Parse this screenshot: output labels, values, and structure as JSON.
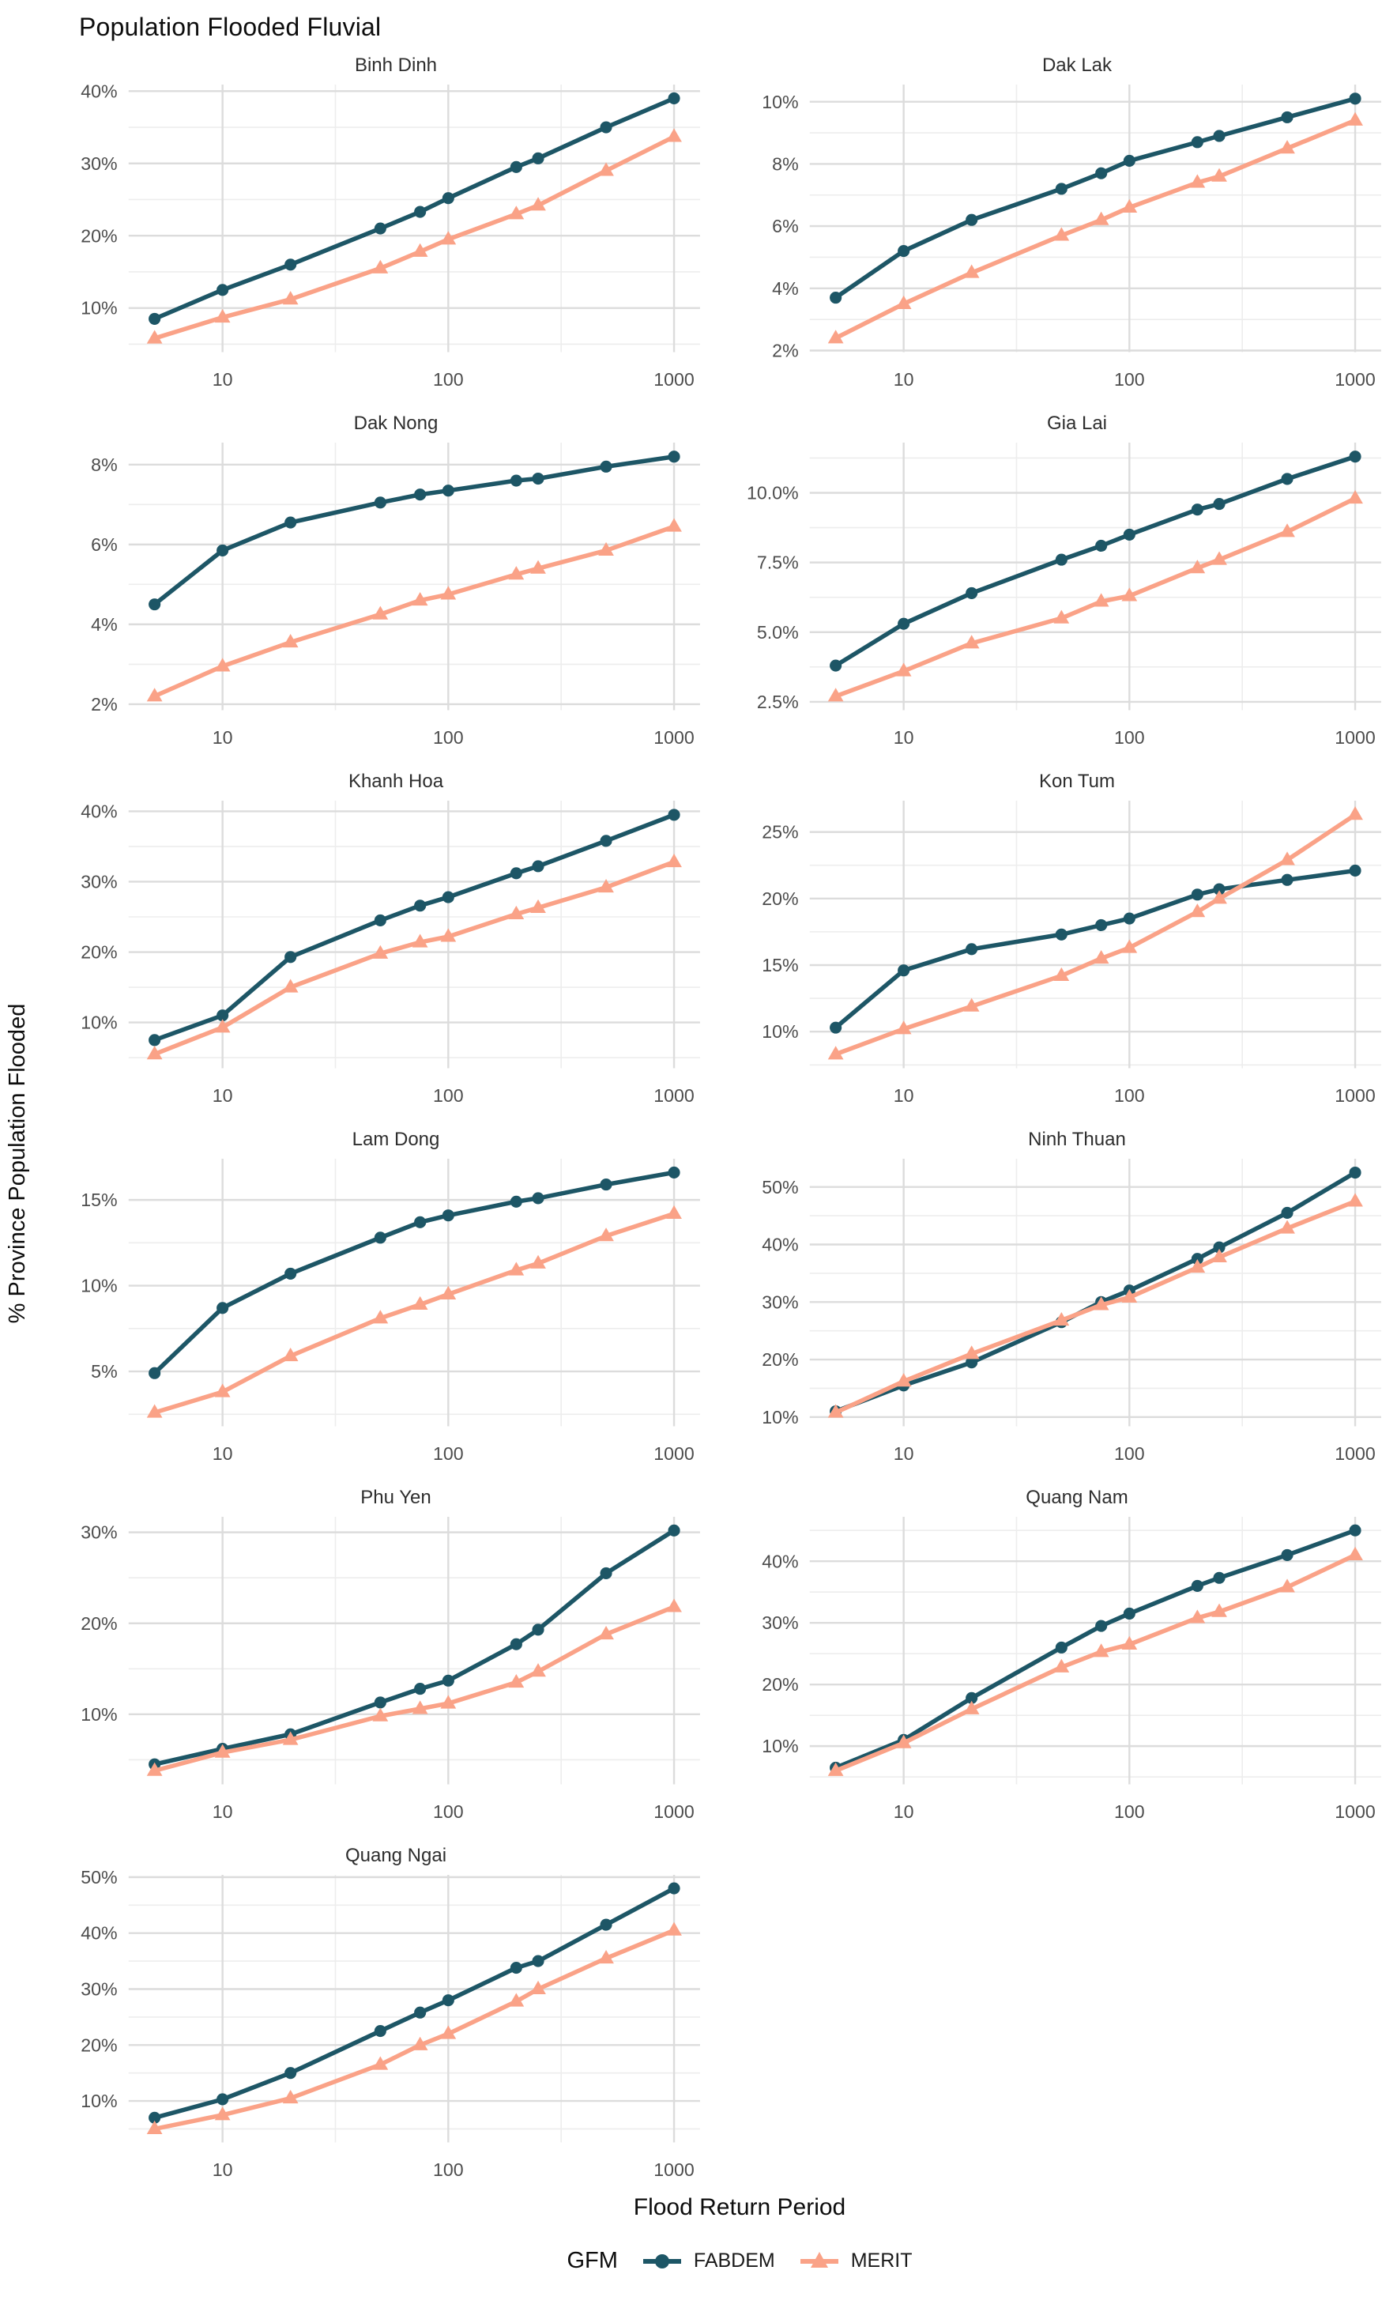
{
  "title": "Population Flooded Fluvial",
  "axes": {
    "x_title": "Flood Return Period",
    "y_title": "% Province Population Flooded"
  },
  "legend": {
    "title": "GFM"
  },
  "colors": {
    "fabdem": "#1d5666",
    "merit": "#faa287",
    "grid_major": "#dcdcdc",
    "grid_minor": "#ededed",
    "tick_text": "#4d4d4d"
  },
  "chart_data": {
    "type": "line",
    "x_scale": "log10",
    "xlabel": "Flood Return Period",
    "ylabel": "% Province Population Flooded",
    "grid": true,
    "legend_position": "bottom",
    "x": [
      5,
      10,
      20,
      50,
      75,
      100,
      200,
      250,
      500,
      1000
    ],
    "xtick_values": [
      10,
      100,
      1000
    ],
    "xtick_labels": [
      "10",
      "100",
      "1000"
    ],
    "x_minor": [
      31.62,
      316.2
    ],
    "series_meta": [
      {
        "name": "FABDEM",
        "color": "#1d5666",
        "marker": "circle"
      },
      {
        "name": "MERIT",
        "color": "#faa287",
        "marker": "triangle"
      }
    ],
    "facets": [
      {
        "title": "Binh Dinh",
        "ylim": [
          3.9,
          40.9
        ],
        "ytick_values": [
          10,
          20,
          30,
          40
        ],
        "ytick_labels": [
          "10%",
          "20%",
          "30%",
          "40%"
        ],
        "series": {
          "FABDEM": [
            8.5,
            12.5,
            16.0,
            21.0,
            23.3,
            25.2,
            29.5,
            30.7,
            35.0,
            39.0
          ],
          "MERIT": [
            5.8,
            8.7,
            11.2,
            15.5,
            17.8,
            19.5,
            23.0,
            24.2,
            29.0,
            33.7
          ]
        }
      },
      {
        "title": "Dak Lak",
        "ylim": [
          1.95,
          10.55
        ],
        "ytick_values": [
          2,
          4,
          6,
          8,
          10
        ],
        "ytick_labels": [
          "2%",
          "4%",
          "6%",
          "8%",
          "10%"
        ],
        "series": {
          "FABDEM": [
            3.7,
            5.2,
            6.2,
            7.2,
            7.7,
            8.1,
            8.7,
            8.9,
            9.5,
            10.1
          ],
          "MERIT": [
            2.4,
            3.5,
            4.5,
            5.7,
            6.2,
            6.6,
            7.4,
            7.6,
            8.5,
            9.4
          ]
        }
      },
      {
        "title": "Dak Nong",
        "ylim": [
          1.85,
          8.55
        ],
        "ytick_values": [
          2,
          4,
          6,
          8
        ],
        "ytick_labels": [
          "2%",
          "4%",
          "6%",
          "8%"
        ],
        "series": {
          "FABDEM": [
            4.5,
            5.85,
            6.55,
            7.05,
            7.25,
            7.35,
            7.6,
            7.65,
            7.95,
            8.2
          ],
          "MERIT": [
            2.2,
            2.95,
            3.55,
            4.25,
            4.6,
            4.75,
            5.25,
            5.4,
            5.85,
            6.45
          ]
        }
      },
      {
        "title": "Gia Lai",
        "ylim": [
          2.2,
          11.8
        ],
        "ytick_values": [
          2.5,
          5.0,
          7.5,
          10.0
        ],
        "ytick_labels": [
          "2.5%",
          "5.0%",
          "7.5%",
          "10.0%"
        ],
        "series": {
          "FABDEM": [
            3.8,
            5.3,
            6.4,
            7.6,
            8.1,
            8.5,
            9.4,
            9.6,
            10.5,
            11.3
          ],
          "MERIT": [
            2.7,
            3.6,
            4.6,
            5.5,
            6.1,
            6.3,
            7.3,
            7.6,
            8.6,
            9.8
          ]
        }
      },
      {
        "title": "Khanh Hoa",
        "ylim": [
          3.5,
          41.5
        ],
        "ytick_values": [
          10,
          20,
          30,
          40
        ],
        "ytick_labels": [
          "10%",
          "20%",
          "30%",
          "40%"
        ],
        "series": {
          "FABDEM": [
            7.5,
            11.0,
            19.3,
            24.5,
            26.6,
            27.8,
            31.2,
            32.2,
            35.8,
            39.5
          ],
          "MERIT": [
            5.5,
            9.3,
            15.0,
            19.8,
            21.4,
            22.2,
            25.4,
            26.3,
            29.2,
            32.8
          ]
        }
      },
      {
        "title": "Kon Tum",
        "ylim": [
          7.25,
          27.35
        ],
        "ytick_values": [
          10,
          15,
          20,
          25
        ],
        "ytick_labels": [
          "10%",
          "15%",
          "20%",
          "25%"
        ],
        "series": {
          "FABDEM": [
            10.3,
            14.6,
            16.2,
            17.3,
            18.0,
            18.5,
            20.3,
            20.7,
            21.4,
            22.1
          ],
          "MERIT": [
            8.3,
            10.2,
            11.9,
            14.2,
            15.5,
            16.3,
            19.0,
            20.0,
            22.9,
            26.3
          ]
        }
      },
      {
        "title": "Lam Dong",
        "ylim": [
          1.8,
          17.4
        ],
        "ytick_values": [
          5,
          10,
          15
        ],
        "ytick_labels": [
          "5%",
          "10%",
          "15%"
        ],
        "series": {
          "FABDEM": [
            4.9,
            8.7,
            10.7,
            12.8,
            13.7,
            14.1,
            14.9,
            15.1,
            15.9,
            16.6
          ],
          "MERIT": [
            2.6,
            3.8,
            5.9,
            8.1,
            8.9,
            9.5,
            10.9,
            11.3,
            12.9,
            14.2
          ]
        }
      },
      {
        "title": "Ninh Thuan",
        "ylim": [
          8.4,
          54.9
        ],
        "ytick_values": [
          10,
          20,
          30,
          40,
          50
        ],
        "ytick_labels": [
          "10%",
          "20%",
          "30%",
          "40%",
          "50%"
        ],
        "series": {
          "FABDEM": [
            11.0,
            15.5,
            19.5,
            26.5,
            30.0,
            32.0,
            37.5,
            39.5,
            45.5,
            52.5
          ],
          "MERIT": [
            10.8,
            16.2,
            21.0,
            26.8,
            29.5,
            30.8,
            36.0,
            37.8,
            42.8,
            47.5
          ]
        }
      },
      {
        "title": "Phu Yen",
        "ylim": [
          2.3,
          31.7
        ],
        "ytick_values": [
          10,
          20,
          30
        ],
        "ytick_labels": [
          "10%",
          "20%",
          "30%"
        ],
        "series": {
          "FABDEM": [
            4.5,
            6.2,
            7.8,
            11.3,
            12.8,
            13.7,
            17.7,
            19.3,
            25.5,
            30.2
          ],
          "MERIT": [
            3.8,
            5.8,
            7.2,
            9.8,
            10.6,
            11.2,
            13.5,
            14.7,
            18.8,
            21.8
          ]
        }
      },
      {
        "title": "Quang Nam",
        "ylim": [
          3.8,
          47.2
        ],
        "ytick_values": [
          10,
          20,
          30,
          40
        ],
        "ytick_labels": [
          "10%",
          "20%",
          "30%",
          "40%"
        ],
        "series": {
          "FABDEM": [
            6.5,
            11.0,
            17.8,
            26.0,
            29.5,
            31.5,
            36.0,
            37.3,
            41.0,
            45.0
          ],
          "MERIT": [
            6.0,
            10.5,
            16.0,
            22.8,
            25.3,
            26.5,
            30.8,
            31.8,
            35.8,
            41.0
          ]
        }
      },
      {
        "title": "Quang Ngai",
        "ylim": [
          2.6,
          50.4
        ],
        "ytick_values": [
          10,
          20,
          30,
          40,
          50
        ],
        "ytick_labels": [
          "10%",
          "20%",
          "30%",
          "40%",
          "50%"
        ],
        "series": {
          "FABDEM": [
            7.0,
            10.3,
            15.0,
            22.5,
            25.8,
            28.0,
            33.8,
            35.0,
            41.5,
            48.0
          ],
          "MERIT": [
            5.0,
            7.5,
            10.5,
            16.5,
            20.0,
            22.0,
            27.8,
            30.0,
            35.5,
            40.5
          ]
        }
      }
    ]
  }
}
